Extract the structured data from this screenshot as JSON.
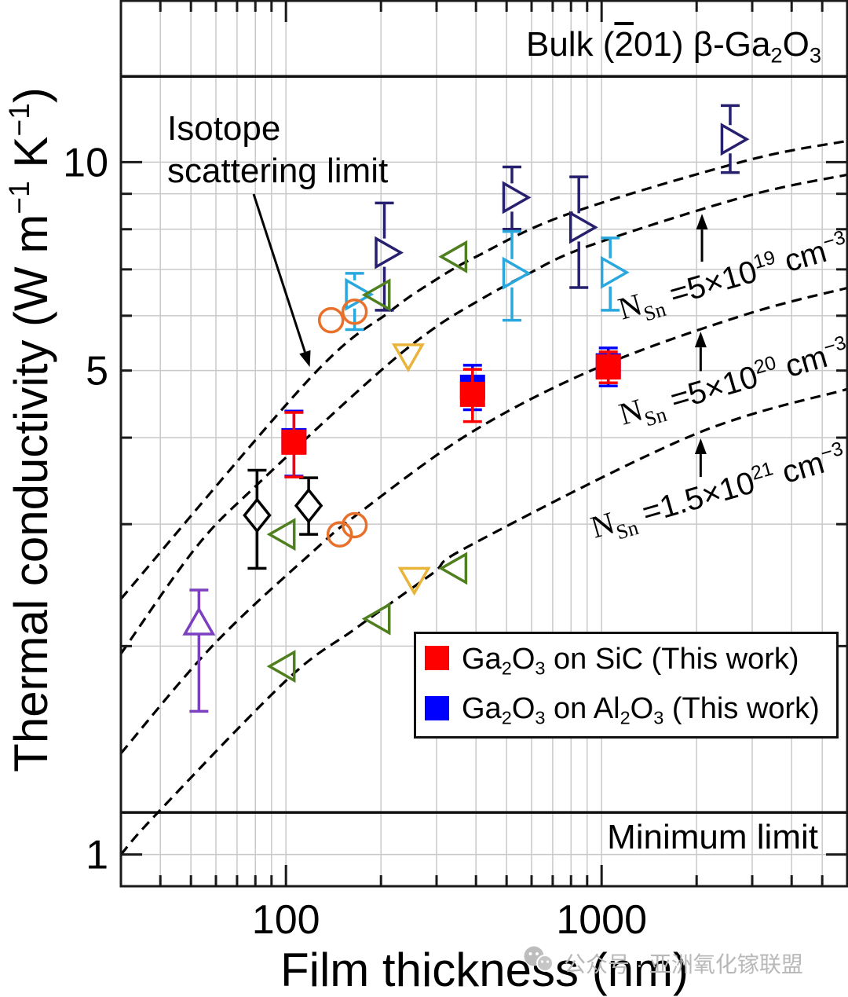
{
  "watermark": {
    "text": "公众号 · 亚洲氧化镓联盟",
    "icon": "wechat-icon"
  },
  "chart_data": {
    "type": "scatter",
    "title": "",
    "xlabel": "Film thickness (nm)",
    "ylabel": "Thermal conductivity (W m−1 K−1)",
    "ylabel_parts": [
      {
        "t": "Thermal conductivity (W m"
      },
      {
        "t": "−1",
        "v": "sup"
      },
      {
        "t": " K"
      },
      {
        "t": "−1",
        "v": "sup"
      },
      {
        "t": ")"
      }
    ],
    "xscale": "log",
    "yscale": "log",
    "xlim": [
      30,
      6000
    ],
    "ylim": [
      0.9,
      17.1
    ],
    "xmajor_ticks": [
      100,
      1000
    ],
    "xminor_ticks": [
      40,
      50,
      60,
      70,
      80,
      90,
      200,
      300,
      400,
      500,
      600,
      700,
      800,
      900,
      2000,
      3000,
      4000,
      5000
    ],
    "xtick_labels": [
      {
        "value": 100,
        "label": "100"
      },
      {
        "value": 1000,
        "label": "1000"
      }
    ],
    "ymajor_ticks": [
      1,
      10
    ],
    "yminor_ticks": [
      2,
      3,
      4,
      5,
      6,
      7,
      8,
      9
    ],
    "ytick_labels": [
      {
        "value": 1,
        "label": "1"
      },
      {
        "value": 5,
        "label": "5"
      },
      {
        "value": 10,
        "label": "10"
      }
    ],
    "grid": true,
    "legend": {
      "placement": "lower-right",
      "entries": [
        {
          "label": "Ga2O3 on SiC (This work)",
          "color": "#ff0000",
          "marker": "square-filled",
          "label_parts": [
            {
              "t": "Ga"
            },
            {
              "t": "2",
              "v": "sub"
            },
            {
              "t": "O"
            },
            {
              "t": "3",
              "v": "sub"
            },
            {
              "t": " on SiC (This work)"
            }
          ]
        },
        {
          "label": "Ga2O3 on Al2O3 (This work)",
          "color": "#0000ff",
          "marker": "square-filled",
          "label_parts": [
            {
              "t": "Ga"
            },
            {
              "t": "2",
              "v": "sub"
            },
            {
              "t": "O"
            },
            {
              "t": "3",
              "v": "sub"
            },
            {
              "t": " on Al"
            },
            {
              "t": "2",
              "v": "sub"
            },
            {
              "t": "O"
            },
            {
              "t": "3",
              "v": "sub"
            },
            {
              "t": " (This work)"
            }
          ]
        }
      ]
    },
    "reference_lines": [
      {
        "y": 13.3,
        "label": "Bulk (2̄01) β-Ga2O3",
        "label_parts": [
          {
            "t": "Bulk ("
          },
          {
            "t": "2",
            "v": "bar"
          },
          {
            "t": "01) β-Ga"
          },
          {
            "t": "2",
            "v": "sub"
          },
          {
            "t": "O"
          },
          {
            "t": "3",
            "v": "sub"
          }
        ]
      },
      {
        "y": 1.15,
        "label": "Minimum limit"
      }
    ],
    "model_curves": [
      {
        "label": "Isotope scattering limit",
        "style": "dashed",
        "points": [
          [
            30,
            2.34
          ],
          [
            120,
            4.89
          ],
          [
            213,
            6.08
          ],
          [
            289,
            6.7
          ],
          [
            400,
            7.3
          ],
          [
            781,
            8.41
          ],
          [
            2877,
            10.05
          ],
          [
            6000,
            10.73
          ]
        ]
      },
      {
        "label": "N_Sn = 5×10^19 cm^-3",
        "style": "dashed",
        "points": [
          [
            30,
            1.95
          ],
          [
            52,
            2.78
          ],
          [
            81,
            3.42
          ],
          [
            190,
            4.9
          ],
          [
            289,
            5.72
          ],
          [
            408,
            6.31
          ],
          [
            576,
            6.87
          ],
          [
            913,
            7.57
          ],
          [
            2877,
            8.93
          ],
          [
            6000,
            9.59
          ]
        ]
      },
      {
        "label": "N_Sn = 5×10^20 cm^-3",
        "style": "dashed",
        "points": [
          [
            30,
            1.4
          ],
          [
            59,
            2.01
          ],
          [
            123,
            2.75
          ],
          [
            170,
            3.11
          ],
          [
            386,
            4.07
          ],
          [
            983,
            5.06
          ],
          [
            2877,
            6.03
          ],
          [
            6000,
            6.58
          ]
        ]
      },
      {
        "label": "N_Sn = 1.5×10^21 cm^-3",
        "style": "dashed",
        "points": [
          [
            30,
            1.0
          ],
          [
            39,
            1.146
          ],
          [
            101,
            1.79
          ],
          [
            166,
            2.12
          ],
          [
            289,
            2.54
          ],
          [
            386,
            2.8
          ],
          [
            1960,
            4.04
          ],
          [
            6000,
            4.7
          ]
        ]
      }
    ],
    "series": [
      {
        "name": "",
        "marker": "triangle-right",
        "color": "#26206e",
        "points": [
          {
            "x": 205,
            "y": 7.4,
            "yerr": [
              6.11,
              8.73
            ]
          },
          {
            "x": 520,
            "y": 8.89,
            "yerr": [
              8.0,
              9.84
            ]
          },
          {
            "x": 847,
            "y": 8.05,
            "yerr": [
              6.59,
              9.52
            ]
          },
          {
            "x": 2555,
            "y": 10.79,
            "yerr": [
              9.66,
              12.07
            ]
          }
        ]
      },
      {
        "name": "",
        "marker": "triangle-right",
        "color": "#2aa7dc",
        "points": [
          {
            "x": 165,
            "y": 6.44,
            "yerr": [
              5.73,
              6.91
            ]
          },
          {
            "x": 520,
            "y": 6.91,
            "yerr": [
              5.91,
              7.94
            ]
          },
          {
            "x": 1065,
            "y": 6.93,
            "yerr": [
              6.11,
              7.77
            ]
          }
        ]
      },
      {
        "name": "",
        "marker": "triangle-left",
        "color": "#4f7f1f",
        "points": [
          {
            "x": 100,
            "y": 2.9
          },
          {
            "x": 100,
            "y": 1.87
          },
          {
            "x": 200,
            "y": 6.43
          },
          {
            "x": 200,
            "y": 2.19
          },
          {
            "x": 350,
            "y": 7.3
          },
          {
            "x": 350,
            "y": 2.59
          }
        ]
      },
      {
        "name": "",
        "marker": "circle",
        "color": "#e8702a",
        "points": [
          {
            "x": 139,
            "y": 5.91
          },
          {
            "x": 165,
            "y": 6.08
          },
          {
            "x": 148,
            "y": 2.9
          },
          {
            "x": 165,
            "y": 2.99
          }
        ]
      },
      {
        "name": "",
        "marker": "triangle-down",
        "color": "#e9b43a",
        "points": [
          {
            "x": 244,
            "y": 5.3
          },
          {
            "x": 255,
            "y": 2.52
          }
        ]
      },
      {
        "name": "",
        "marker": "diamond",
        "color": "#000000",
        "points": [
          {
            "x": 81,
            "y": 3.09,
            "yerr": [
              2.59,
              3.59
            ]
          },
          {
            "x": 118,
            "y": 3.19,
            "yerr": [
              2.9,
              3.5
            ]
          }
        ]
      },
      {
        "name": "",
        "marker": "triangle-up",
        "color": "#7b3fc0",
        "points": [
          {
            "x": 53,
            "y": 2.14,
            "yerr": [
              1.61,
              2.41
            ]
          }
        ]
      },
      {
        "name": "Ga2O3 on Al2O3 (This work)",
        "marker": "square-filled",
        "color": "#0000ff",
        "points": [
          {
            "x": 106,
            "y": 3.96,
            "yerr": [
              3.52,
              4.37
            ]
          },
          {
            "x": 390,
            "y": 4.73,
            "yerr": [
              4.39,
              5.09
            ]
          },
          {
            "x": 1050,
            "y": 5.08,
            "yerr": [
              4.75,
              5.39
            ]
          }
        ]
      },
      {
        "name": "Ga2O3 on SiC (This work)",
        "marker": "square-filled",
        "color": "#ff0000",
        "points": [
          {
            "x": 106,
            "y": 3.94,
            "yerr": [
              3.51,
              4.35
            ]
          },
          {
            "x": 390,
            "y": 4.62,
            "yerr": [
              4.22,
              5.02
            ]
          },
          {
            "x": 1050,
            "y": 5.06,
            "yerr": [
              4.8,
              5.32
            ]
          }
        ]
      }
    ],
    "annotations": [
      {
        "text": "Isotope scattering limit",
        "text_lines": [
          "Isotope",
          "scattering limit"
        ],
        "arrow_from": [
          79,
          8.99
        ],
        "arrow_to": [
          119,
          5.06
        ]
      },
      {
        "text": "N_Sn =5×10^19 cm^-3",
        "label_parts": [
          {
            "t": "N",
            "v": "symbol"
          },
          {
            "t": "Sn",
            "v": "symbol sub"
          },
          {
            "t": " =5×10"
          },
          {
            "t": "19",
            "v": "sup"
          },
          {
            "t": " cm"
          },
          {
            "t": "−3",
            "v": "sup"
          }
        ],
        "arrow_from": [
          2080,
          7.18
        ],
        "arrow_to": [
          2080,
          8.42
        ]
      },
      {
        "text": "N_Sn =5×10^20 cm^-3",
        "label_parts": [
          {
            "t": "N",
            "v": "symbol"
          },
          {
            "t": "Sn",
            "v": "symbol sub"
          },
          {
            "t": " =5×10"
          },
          {
            "t": "20",
            "v": "sup"
          },
          {
            "t": " cm"
          },
          {
            "t": "−3",
            "v": "sup"
          }
        ],
        "arrow_from": [
          2060,
          4.99
        ],
        "arrow_to": [
          2060,
          5.69
        ]
      },
      {
        "text": "N_Sn =1.5×10^21 cm^-3",
        "label_parts": [
          {
            "t": "N",
            "v": "symbol"
          },
          {
            "t": "Sn",
            "v": "symbol sub"
          },
          {
            "t": " =1.5×10"
          },
          {
            "t": "21",
            "v": "sup"
          },
          {
            "t": " cm"
          },
          {
            "t": "−3",
            "v": "sup"
          }
        ],
        "arrow_from": [
          2060,
          3.51
        ],
        "arrow_to": [
          2060,
          3.99
        ]
      }
    ]
  }
}
